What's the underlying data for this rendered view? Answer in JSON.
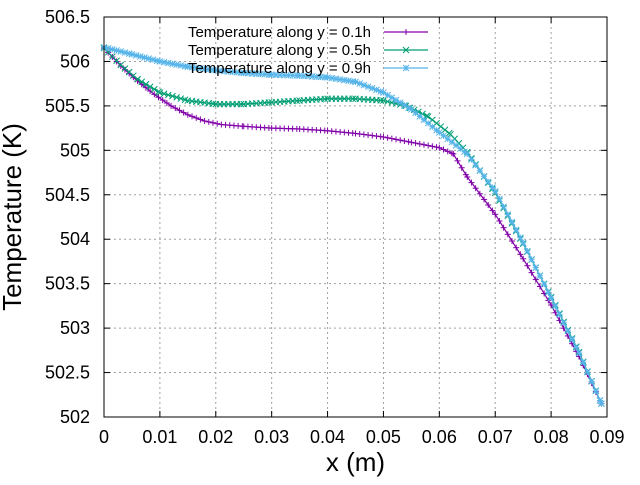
{
  "chart_data": {
    "type": "line",
    "title": "",
    "xlabel": "x (m)",
    "ylabel": "Temperature (K)",
    "xlim": [
      0,
      0.09
    ],
    "ylim": [
      502,
      506.5
    ],
    "xticks": [
      "0",
      "0.01",
      "0.02",
      "0.03",
      "0.04",
      "0.05",
      "0.06",
      "0.07",
      "0.08",
      "0.09"
    ],
    "yticks": [
      "502",
      "502.5",
      "503",
      "503.5",
      "504",
      "504.5",
      "505",
      "505.5",
      "506",
      "506.5"
    ],
    "grid": true,
    "legend_position": "top-left",
    "series": [
      {
        "name": "Temperature along y = 0.1h",
        "color": "#8000a8",
        "marker": "plus",
        "x": [
          0,
          0.003,
          0.006,
          0.009,
          0.012,
          0.015,
          0.018,
          0.021,
          0.025,
          0.03,
          0.035,
          0.04,
          0.045,
          0.05,
          0.055,
          0.06,
          0.0625,
          0.065,
          0.07,
          0.075,
          0.08,
          0.085,
          0.089
        ],
        "y": [
          506.15,
          505.95,
          505.78,
          505.63,
          505.5,
          505.4,
          505.33,
          505.29,
          505.27,
          505.25,
          505.24,
          505.22,
          505.19,
          505.15,
          505.09,
          505.03,
          504.96,
          504.7,
          504.28,
          503.78,
          503.26,
          502.68,
          502.15
        ]
      },
      {
        "name": "Temperature along y = 0.5h",
        "color": "#009e73",
        "marker": "cross",
        "x": [
          0,
          0.003,
          0.006,
          0.01,
          0.015,
          0.02,
          0.025,
          0.03,
          0.035,
          0.04,
          0.045,
          0.05,
          0.054,
          0.058,
          0.062,
          0.065,
          0.07,
          0.075,
          0.08,
          0.085,
          0.089
        ],
        "y": [
          506.15,
          505.96,
          505.8,
          505.65,
          505.56,
          505.52,
          505.52,
          505.54,
          505.56,
          505.58,
          505.58,
          505.56,
          505.5,
          505.38,
          505.18,
          504.98,
          504.52,
          503.95,
          503.35,
          502.73,
          502.15
        ]
      },
      {
        "name": "Temperature along y = 0.9h",
        "color": "#56b4e9",
        "marker": "star",
        "x": [
          0,
          0.005,
          0.01,
          0.015,
          0.02,
          0.025,
          0.03,
          0.035,
          0.04,
          0.045,
          0.05,
          0.055,
          0.06,
          0.065,
          0.07,
          0.075,
          0.08,
          0.085,
          0.089
        ],
        "y": [
          506.16,
          506.08,
          506.0,
          505.94,
          505.9,
          505.87,
          505.85,
          505.84,
          505.82,
          505.77,
          505.65,
          505.46,
          505.2,
          504.96,
          504.54,
          503.96,
          503.34,
          502.72,
          502.15
        ]
      }
    ]
  }
}
